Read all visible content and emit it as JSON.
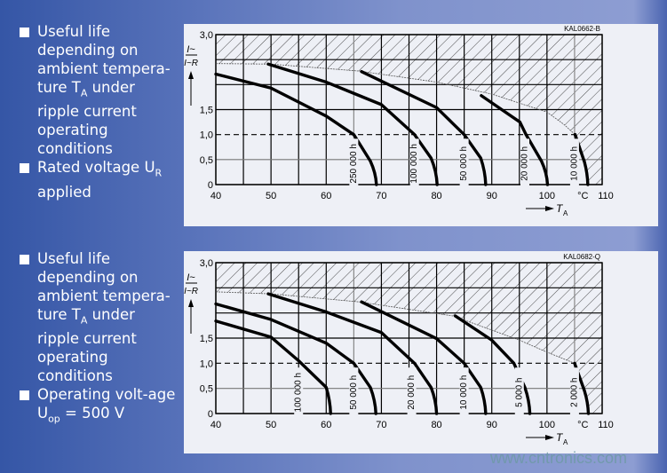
{
  "colors": {
    "background": "#5a74bb",
    "panel": "#eef0f6",
    "text": "#ffffff",
    "curve": "#000000",
    "watermark": "#6e9aa6"
  },
  "blocks": [
    {
      "items": [
        {
          "pre": "Useful life depending on ambient tempera-ture T",
          "sub": "A",
          "post": " under ripple current operating conditions"
        },
        {
          "pre": "Rated voltage U",
          "sub": "R",
          "post": " applied"
        }
      ]
    },
    {
      "items": [
        {
          "pre": "Useful life depending on ambient tempera-ture T",
          "sub": "A",
          "post": " under ripple current operating conditions"
        },
        {
          "pre": "Operating volt-age U",
          "sub": "op",
          "post": " = 500 V"
        }
      ]
    }
  ],
  "chart_data": [
    {
      "type": "line",
      "code": "KAL0662-B",
      "xlabel": "T",
      "xlabel_sub": "A",
      "x_unit": "°C",
      "ylabel_num": "I~",
      "ylabel_den": "I~R",
      "xlim": [
        40,
        110
      ],
      "ylim": [
        0,
        3.0
      ],
      "x_ticks": [
        "40",
        "50",
        "60",
        "70",
        "80",
        "90",
        "100",
        "°C",
        "110"
      ],
      "y_ticks": [
        "3,0",
        "1,5",
        "1,0",
        "0,5",
        "0"
      ],
      "grid": true,
      "dashed_reference_y": 1.0,
      "limit_boundary": [
        [
          40,
          2.42
        ],
        [
          50,
          2.41
        ],
        [
          66,
          2.27
        ],
        [
          80,
          2.05
        ],
        [
          90,
          1.81
        ],
        [
          100,
          1.45
        ],
        [
          103,
          1.21
        ],
        [
          105.1,
          1.0
        ]
      ],
      "series": [
        {
          "name": "250 000 h",
          "points": [
            [
              40,
              2.21
            ],
            [
              50,
              1.93
            ],
            [
              60,
              1.37
            ],
            [
              65,
              1.0
            ],
            [
              68,
              0.47
            ],
            [
              69.1,
              0
            ]
          ]
        },
        {
          "name": "100 000 h",
          "points": [
            [
              49.5,
              2.41
            ],
            [
              60,
              2.05
            ],
            [
              70,
              1.6
            ],
            [
              76,
              1.0
            ],
            [
              79,
              0.53
            ],
            [
              80.1,
              0
            ]
          ]
        },
        {
          "name": "50 000 h",
          "points": [
            [
              66.4,
              2.26
            ],
            [
              80,
              1.54
            ],
            [
              85,
              1.0
            ],
            [
              88,
              0.53
            ],
            [
              88.9,
              0
            ]
          ]
        },
        {
          "name": "20 000 h",
          "points": [
            [
              88.1,
              1.78
            ],
            [
              95.1,
              1.25
            ],
            [
              96.2,
              1.0
            ],
            [
              99,
              0.47
            ],
            [
              100.1,
              0
            ]
          ]
        },
        {
          "name": "10 000 h",
          "points": [
            [
              105.1,
              1.0
            ],
            [
              106.8,
              0.45
            ],
            [
              107.4,
              0
            ]
          ]
        }
      ]
    },
    {
      "type": "line",
      "code": "KAL0682-Q",
      "xlabel": "T",
      "xlabel_sub": "A",
      "x_unit": "°C",
      "ylabel_num": "I~",
      "ylabel_den": "I~R",
      "xlim": [
        40,
        110
      ],
      "ylim": [
        0,
        3.0
      ],
      "x_ticks": [
        "40",
        "50",
        "60",
        "70",
        "80",
        "90",
        "100",
        "°C",
        "110"
      ],
      "y_ticks": [
        "3,0",
        "1,5",
        "1,0",
        "0,5",
        "0"
      ],
      "grid": true,
      "dashed_reference_y": 1.0,
      "limit_boundary": [
        [
          40,
          2.42
        ],
        [
          50,
          2.38
        ],
        [
          66,
          2.22
        ],
        [
          83,
          1.94
        ],
        [
          95,
          1.46
        ],
        [
          100,
          1.22
        ],
        [
          105,
          1.0
        ]
      ],
      "series": [
        {
          "name": "100 000 h",
          "points": [
            [
              40,
              1.84
            ],
            [
              50,
              1.52
            ],
            [
              55,
              1.05
            ],
            [
              60,
              0.52
            ],
            [
              60.8,
              0
            ]
          ]
        },
        {
          "name": "50 000 h",
          "points": [
            [
              40,
              2.18
            ],
            [
              50,
              1.87
            ],
            [
              60,
              1.4
            ],
            [
              65,
              1.0
            ],
            [
              68,
              0.52
            ],
            [
              69,
              0
            ]
          ]
        },
        {
          "name": "20 000 h",
          "points": [
            [
              49.5,
              2.38
            ],
            [
              60,
              2.02
            ],
            [
              70,
              1.61
            ],
            [
              76,
              1.0
            ],
            [
              79,
              0.52
            ],
            [
              80,
              0
            ]
          ]
        },
        {
          "name": "10 000 h",
          "points": [
            [
              66.4,
              2.22
            ],
            [
              80,
              1.49
            ],
            [
              85,
              1.0
            ],
            [
              88,
              0.52
            ],
            [
              88.9,
              0
            ]
          ]
        },
        {
          "name": "5 000 h",
          "points": [
            [
              83.4,
              1.94
            ],
            [
              90,
              1.46
            ],
            [
              94,
              1.0
            ],
            [
              96,
              0.52
            ],
            [
              96.9,
              0
            ]
          ]
        },
        {
          "name": "2 000 h",
          "points": [
            [
              105,
              1.0
            ],
            [
              106.8,
              0.45
            ],
            [
              107.5,
              0
            ]
          ]
        }
      ]
    }
  ],
  "watermark": "www.cntronics.com"
}
